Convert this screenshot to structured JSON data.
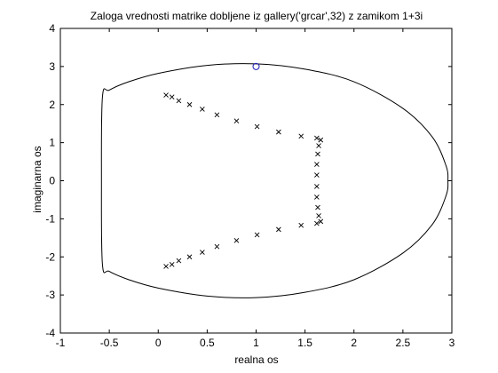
{
  "chart_data": {
    "type": "scatter",
    "title": "Zaloga vrednosti matrike dobljene iz gallery('grcar',32) z zamikom 1+3i",
    "xlabel": "realna os",
    "ylabel": "imaginarna os",
    "xlim": [
      -1,
      3
    ],
    "ylim": [
      -4,
      4
    ],
    "xticks": [
      -1,
      -0.5,
      0,
      0.5,
      1,
      1.5,
      2,
      2.5,
      3
    ],
    "yticks": [
      -4,
      -3,
      -2,
      -1,
      0,
      1,
      2,
      3,
      4
    ],
    "xtick_labels": [
      "-1",
      "-0.5",
      "0",
      "0.5",
      "1",
      "1.5",
      "2",
      "2.5",
      "3"
    ],
    "ytick_labels": [
      "-4",
      "-3",
      "-2",
      "-1",
      "0",
      "1",
      "2",
      "3",
      "4"
    ],
    "grid": false,
    "colors": {
      "boundary": "#000000",
      "eigenvalues": "#000000",
      "shift": "#1f1fb4",
      "axes": "#000000"
    },
    "series": [
      {
        "marker": "line",
        "points": [
          [
            -0.57,
            2.2
          ],
          [
            -0.5,
            2.38
          ],
          [
            -0.3,
            2.6
          ],
          [
            0,
            2.82
          ],
          [
            0.5,
            3.03
          ],
          [
            1.0,
            3.07
          ],
          [
            1.5,
            2.93
          ],
          [
            2.0,
            2.6
          ],
          [
            2.5,
            1.9
          ],
          [
            2.8,
            1.15
          ],
          [
            2.94,
            0.4
          ],
          [
            2.96,
            0
          ],
          [
            2.94,
            -0.4
          ],
          [
            2.8,
            -1.15
          ],
          [
            2.5,
            -1.9
          ],
          [
            2.0,
            -2.6
          ],
          [
            1.5,
            -2.93
          ],
          [
            1.0,
            -3.07
          ],
          [
            0.5,
            -3.03
          ],
          [
            0,
            -2.82
          ],
          [
            -0.3,
            -2.6
          ],
          [
            -0.5,
            -2.38
          ],
          [
            -0.57,
            -2.2
          ],
          [
            -0.58,
            0
          ],
          [
            -0.57,
            2.2
          ]
        ]
      },
      {
        "marker": "x",
        "points": [
          [
            0.08,
            2.25
          ],
          [
            0.14,
            2.2
          ],
          [
            0.21,
            2.1
          ],
          [
            0.32,
            2.0
          ],
          [
            0.45,
            1.88
          ],
          [
            0.6,
            1.73
          ],
          [
            0.8,
            1.57
          ],
          [
            1.01,
            1.42
          ],
          [
            1.23,
            1.28
          ],
          [
            1.46,
            1.17
          ],
          [
            1.62,
            1.12
          ],
          [
            1.66,
            1.07
          ],
          [
            1.64,
            0.92
          ],
          [
            1.63,
            0.7
          ],
          [
            1.62,
            0.43
          ],
          [
            1.62,
            0.15
          ],
          [
            1.62,
            -0.15
          ],
          [
            1.62,
            -0.43
          ],
          [
            1.63,
            -0.7
          ],
          [
            1.64,
            -0.92
          ],
          [
            1.66,
            -1.07
          ],
          [
            1.62,
            -1.12
          ],
          [
            1.46,
            -1.17
          ],
          [
            1.23,
            -1.28
          ],
          [
            1.01,
            -1.42
          ],
          [
            0.8,
            -1.57
          ],
          [
            0.6,
            -1.73
          ],
          [
            0.45,
            -1.88
          ],
          [
            0.32,
            -2.0
          ],
          [
            0.21,
            -2.1
          ],
          [
            0.14,
            -2.2
          ],
          [
            0.08,
            -2.25
          ]
        ]
      },
      {
        "marker": "o",
        "points": [
          [
            1,
            3
          ]
        ]
      }
    ]
  }
}
